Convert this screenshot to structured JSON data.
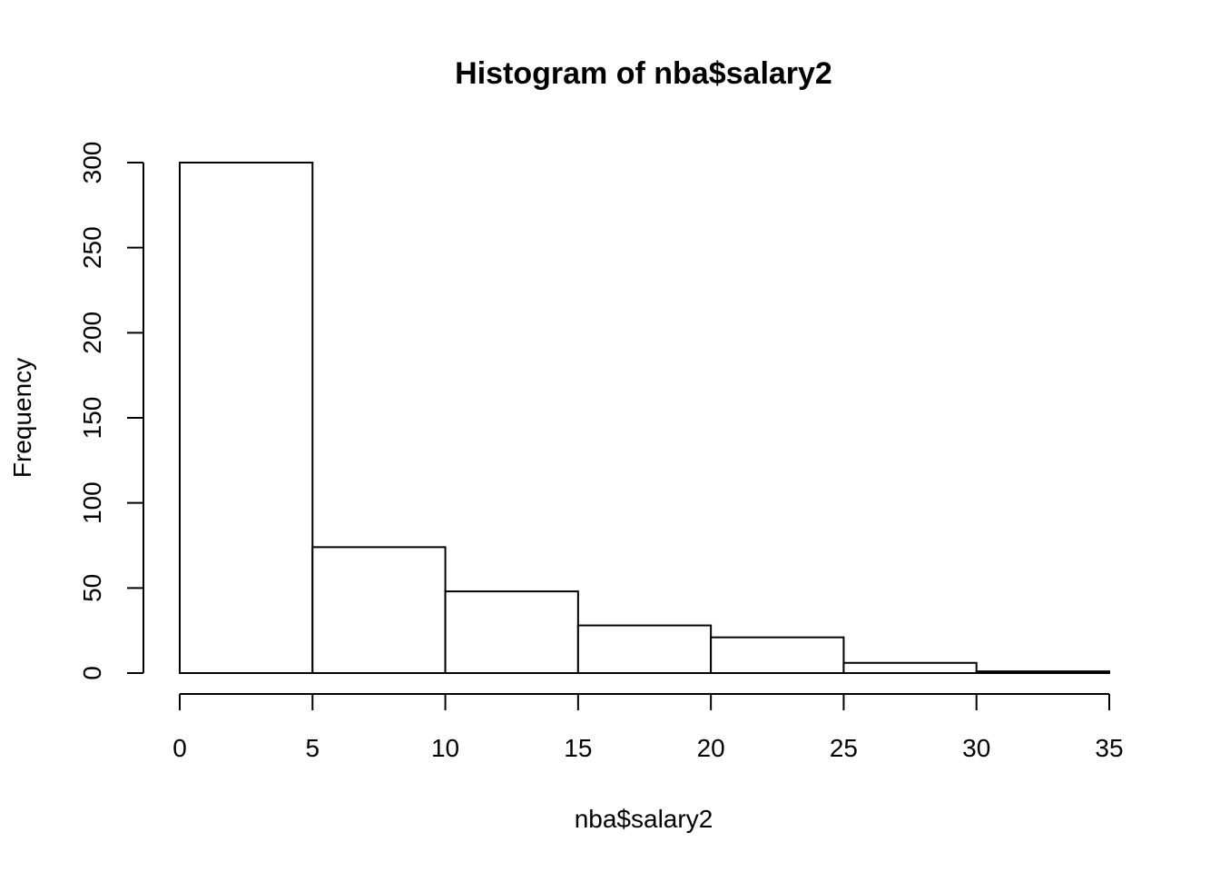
{
  "chart_data": {
    "type": "bar",
    "title": "Histogram of nba$salary2",
    "xlabel": "nba$salary2",
    "ylabel": "Frequency",
    "bins": [
      {
        "from": 0,
        "to": 5,
        "count": 300
      },
      {
        "from": 5,
        "to": 10,
        "count": 74
      },
      {
        "from": 10,
        "to": 15,
        "count": 48
      },
      {
        "from": 15,
        "to": 20,
        "count": 28
      },
      {
        "from": 20,
        "to": 25,
        "count": 21
      },
      {
        "from": 25,
        "to": 30,
        "count": 6
      },
      {
        "from": 30,
        "to": 35,
        "count": 1
      }
    ],
    "xlim": [
      0,
      35
    ],
    "ylim": [
      0,
      300
    ],
    "x_ticks": [
      0,
      5,
      10,
      15,
      20,
      25,
      30,
      35
    ],
    "y_ticks": [
      0,
      50,
      100,
      150,
      200,
      250,
      300
    ],
    "grid": false,
    "legend": "none",
    "colors": {
      "bar_fill": "#ffffff",
      "bar_stroke": "#000000"
    }
  }
}
